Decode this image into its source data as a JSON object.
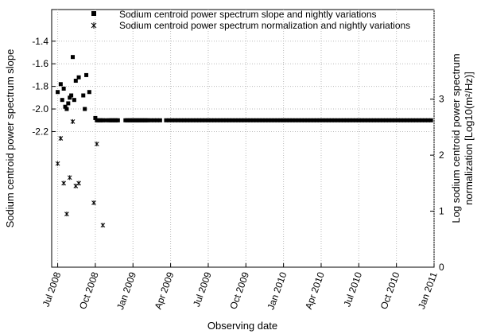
{
  "chart_data": {
    "type": "scatter",
    "xlabel": "Observing date",
    "ylabel_left": "Sodium centroid power spectrum slope",
    "ylabel_right_line1": "Log sodium centroid power spectrum",
    "ylabel_right_line2": "normalization [Log10(m²/Hz)]",
    "legend": {
      "placement": "top",
      "entries": [
        "Sodium centroid power spectrum slope and nightly variations",
        "Sodium centroid power spectrum normalization and nightly variations"
      ]
    },
    "x_ticks": [
      "Jul 2008",
      "Oct 2008",
      "Jan 2009",
      "Apr 2009",
      "Jul 2009",
      "Oct 2009",
      "Jan 2010",
      "Apr 2010",
      "Jul 2010",
      "Oct 2010",
      "Jan 2011"
    ],
    "xlim": [
      2008.46,
      2011.0
    ],
    "ylim_left": [
      -3.4,
      -1.12
    ],
    "y_ticks_left": [
      -1.4,
      -1.6,
      -1.8,
      -2.0,
      -2.2
    ],
    "ylim_right": [
      0,
      4.6
    ],
    "y_ticks_right": [
      0,
      1,
      2,
      3
    ],
    "grid": true,
    "series": [
      {
        "name": "Sodium centroid power spectrum slope and nightly variations",
        "marker": "square",
        "axis": "left",
        "x": [
          2008.5,
          2008.52,
          2008.53,
          2008.54,
          2008.55,
          2008.56,
          2008.57,
          2008.58,
          2008.59,
          2008.6,
          2008.61,
          2008.62,
          2008.64,
          2008.67,
          2008.68,
          2008.69,
          2008.71,
          2008.75,
          2008.76,
          2008.77,
          2008.78,
          2008.79,
          2008.8,
          2008.82,
          2008.84,
          2008.85,
          2008.86,
          2008.87,
          2008.88,
          2008.89,
          2008.9,
          2008.95,
          2008.96,
          2008.97,
          2008.98,
          2008.99,
          2009.0,
          2009.01,
          2009.02,
          2009.03,
          2009.04,
          2009.05,
          2009.06,
          2009.07,
          2009.08,
          2009.09,
          2009.1,
          2009.12,
          2009.14,
          2009.16,
          2009.18,
          2009.22,
          2009.24,
          2009.26,
          2009.28,
          2009.3,
          2009.32,
          2009.34,
          2009.36,
          2009.38,
          2009.4,
          2009.42,
          2009.44,
          2009.46,
          2009.48,
          2009.5,
          2009.52,
          2009.54,
          2009.56,
          2009.58,
          2009.6,
          2009.62,
          2009.64,
          2009.66,
          2009.68,
          2009.7,
          2009.72,
          2009.74,
          2009.76,
          2009.78,
          2009.8,
          2009.82,
          2009.84,
          2009.86,
          2009.88,
          2009.9,
          2009.92,
          2009.94,
          2009.96,
          2009.98,
          2010.0,
          2010.02,
          2010.04,
          2010.06,
          2010.08,
          2010.1,
          2010.12,
          2010.14,
          2010.16,
          2010.18,
          2010.2,
          2010.22,
          2010.24,
          2010.26,
          2010.28,
          2010.3,
          2010.32,
          2010.34,
          2010.36,
          2010.38,
          2010.4,
          2010.42,
          2010.44,
          2010.46,
          2010.48,
          2010.5,
          2010.52,
          2010.54,
          2010.56,
          2010.58,
          2010.6,
          2010.62,
          2010.64,
          2010.66,
          2010.68,
          2010.7,
          2010.72,
          2010.74,
          2010.76,
          2010.78,
          2010.8,
          2010.82,
          2010.84,
          2010.86,
          2010.88,
          2010.9,
          2010.92,
          2010.94,
          2010.96,
          2010.98
        ],
        "y": [
          -1.85,
          -1.78,
          -1.92,
          -1.82,
          -1.98,
          -2.0,
          -1.95,
          -1.9,
          -1.88,
          -1.54,
          -1.92,
          -1.75,
          -1.72,
          -1.88,
          -2.0,
          -1.7,
          -1.85,
          -2.08,
          -2.1,
          -2.1,
          -2.1,
          -2.1,
          -2.1,
          -2.1,
          -2.1,
          -2.1,
          -2.1,
          -2.1,
          -2.1,
          -2.1,
          -2.1,
          -2.1,
          -2.1,
          -2.1,
          -2.1,
          -2.1,
          -2.1,
          -2.1,
          -2.1,
          -2.1,
          -2.1,
          -2.1,
          -2.1,
          -2.1,
          -2.1,
          -2.1,
          -2.1,
          -2.1,
          -2.1,
          -2.1,
          -2.1,
          -2.1,
          -2.1,
          -2.1,
          -2.1,
          -2.1,
          -2.1,
          -2.1,
          -2.1,
          -2.1,
          -2.1,
          -2.1,
          -2.1,
          -2.1,
          -2.1,
          -2.1,
          -2.1,
          -2.1,
          -2.1,
          -2.1,
          -2.1,
          -2.1,
          -2.1,
          -2.1,
          -2.1,
          -2.1,
          -2.1,
          -2.1,
          -2.1,
          -2.1,
          -2.1,
          -2.1,
          -2.1,
          -2.1,
          -2.1,
          -2.1,
          -2.1,
          -2.1,
          -2.1,
          -2.1,
          -2.1,
          -2.1,
          -2.1,
          -2.1,
          -2.1,
          -2.1,
          -2.1,
          -2.1,
          -2.1,
          -2.1,
          -2.1,
          -2.1,
          -2.1,
          -2.1,
          -2.1,
          -2.1,
          -2.1,
          -2.1,
          -2.1,
          -2.1,
          -2.1,
          -2.1,
          -2.1,
          -2.1,
          -2.1,
          -2.1,
          -2.1,
          -2.1,
          -2.1,
          -2.1,
          -2.1,
          -2.1,
          -2.1,
          -2.1,
          -2.1,
          -2.1,
          -2.1,
          -2.1,
          -2.1,
          -2.1,
          -2.1,
          -2.1,
          -2.1,
          -2.1,
          -2.1,
          -2.1,
          -2.1,
          -2.1,
          -2.1,
          -2.1
        ]
      },
      {
        "name": "Sodium centroid power spectrum normalization and nightly variations",
        "marker": "star",
        "axis": "right",
        "x": [
          2008.5,
          2008.52,
          2008.54,
          2008.56,
          2008.58,
          2008.6,
          2008.62,
          2008.64,
          2008.74,
          2008.76,
          2008.8
        ],
        "y": [
          1.85,
          2.3,
          1.5,
          0.95,
          1.6,
          2.6,
          1.45,
          1.5,
          1.15,
          2.2,
          0.75
        ]
      }
    ]
  }
}
